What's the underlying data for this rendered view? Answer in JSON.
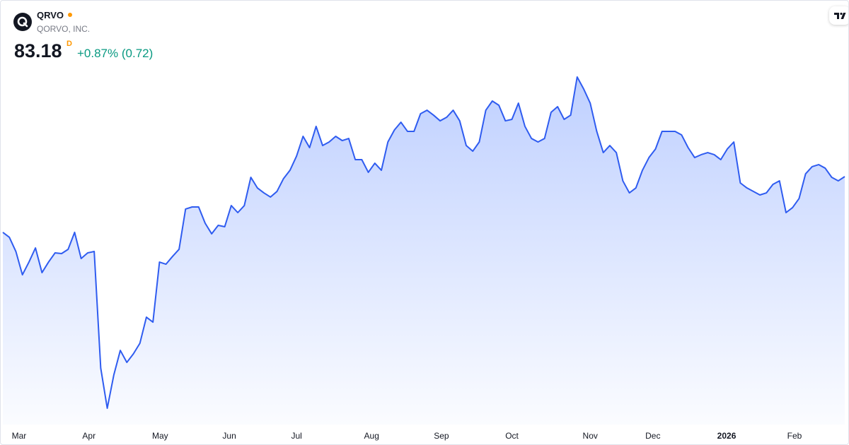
{
  "header": {
    "symbol": "QRVO",
    "name": "QORVO, INC.",
    "price": "83.18",
    "interval": "D",
    "change": "+0.87% (0.72)"
  },
  "chart_data": {
    "type": "area",
    "color": "#2f5cf0",
    "values": [
      75.19,
      74.48,
      72.45,
      69.11,
      70.93,
      72.96,
      69.42,
      70.93,
      72.25,
      72.15,
      72.76,
      75.19,
      71.44,
      72.25,
      72.45,
      55.75,
      49.99,
      54.74,
      58.28,
      56.56,
      57.78,
      59.3,
      63.04,
      62.33,
      70.93,
      70.63,
      71.74,
      72.76,
      78.53,
      78.83,
      78.83,
      76.5,
      74.98,
      76.2,
      76.0,
      79.03,
      78.02,
      79.03,
      83.08,
      81.56,
      80.85,
      80.25,
      81.05,
      82.88,
      84.09,
      86.11,
      88.95,
      87.33,
      90.37,
      87.63,
      88.14,
      88.95,
      88.34,
      88.64,
      85.61,
      85.61,
      83.79,
      85.1,
      84.09,
      88.14,
      89.86,
      90.97,
      89.66,
      89.66,
      92.19,
      92.69,
      91.98,
      91.17,
      91.68,
      92.69,
      91.17,
      87.63,
      86.82,
      88.14,
      92.69,
      94.01,
      93.4,
      91.17,
      91.38,
      93.7,
      90.37,
      88.64,
      88.14,
      88.64,
      92.39,
      93.2,
      91.38,
      91.98,
      97.45,
      95.73,
      93.7,
      89.66,
      86.62,
      87.63,
      86.62,
      82.57,
      80.85,
      81.56,
      84.09,
      85.91,
      87.13,
      89.66,
      89.66,
      89.66,
      89.15,
      87.33,
      85.91,
      86.32,
      86.62,
      86.32,
      85.61,
      87.13,
      88.14,
      82.27,
      81.56,
      81.05,
      80.55,
      80.85,
      82.07,
      82.57,
      78.02,
      78.73,
      80.04,
      83.58,
      84.6,
      84.9,
      84.39,
      83.08,
      82.57,
      83.18
    ],
    "xlim": [
      0,
      129
    ],
    "ylim": [
      47.66,
      108.38
    ],
    "xticks": [
      {
        "value": 2.49,
        "label": "Mar"
      },
      {
        "value": 13.2,
        "label": "Apr"
      },
      {
        "value": 24.1,
        "label": "May"
      },
      {
        "value": 34.7,
        "label": "Jun"
      },
      {
        "value": 45.0,
        "label": "Jul"
      },
      {
        "value": 56.5,
        "label": "Aug"
      },
      {
        "value": 67.2,
        "label": "Sep"
      },
      {
        "value": 78.0,
        "label": "Oct"
      },
      {
        "value": 90.0,
        "label": "Nov"
      },
      {
        "value": 99.6,
        "label": "Dec"
      },
      {
        "value": 110.9,
        "label": "2026",
        "bold": true
      },
      {
        "value": 121.3,
        "label": "Feb"
      }
    ]
  }
}
